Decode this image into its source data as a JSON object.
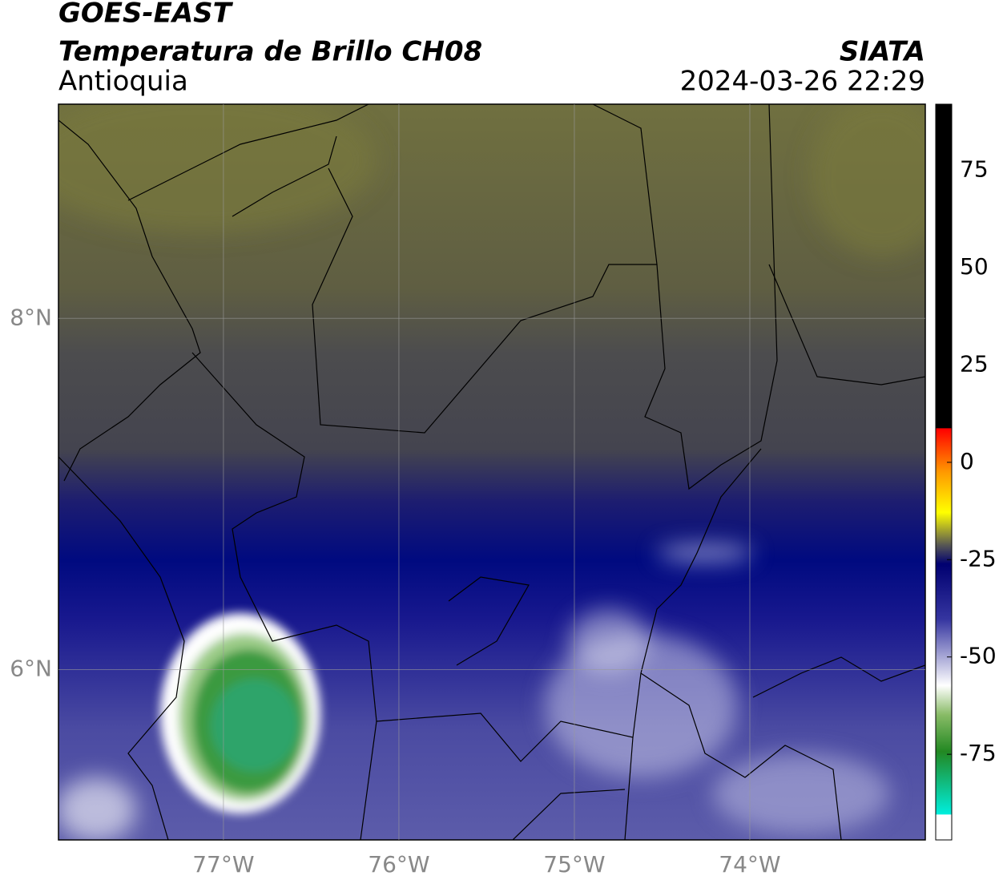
{
  "header": {
    "title": "GOES-EAST",
    "subtitle": "Temperatura de Brillo CH08",
    "region": "Antioquia",
    "agency": "SIATA",
    "timestamp": "2024-03-26 22:29"
  },
  "map": {
    "xlim": [
      -77.94,
      -73.0
    ],
    "ylim": [
      5.03,
      9.22
    ],
    "xticks": [
      {
        "value": -77,
        "label": "77°W"
      },
      {
        "value": -76,
        "label": "76°W"
      },
      {
        "value": -75,
        "label": "75°W"
      },
      {
        "value": -74,
        "label": "74°W"
      }
    ],
    "yticks": [
      {
        "value": 6,
        "label": "6°N"
      },
      {
        "value": 8,
        "label": "8°N"
      }
    ],
    "grid": true
  },
  "colorbar": {
    "lim": [
      -97,
      92
    ],
    "ticks": [
      75,
      50,
      25,
      0,
      -25,
      -50,
      -75
    ]
  }
}
